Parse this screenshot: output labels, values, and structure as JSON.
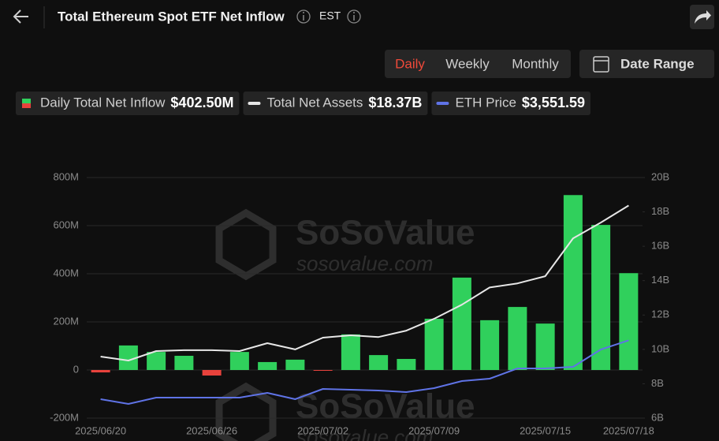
{
  "header": {
    "title": "Total Ethereum Spot ETF Net Inflow",
    "timezone": "EST"
  },
  "tabs": {
    "items": [
      "Daily",
      "Weekly",
      "Monthly"
    ],
    "active": "Daily"
  },
  "date_range": "Date Range",
  "watermark": {
    "name": "SoSoValue",
    "url": "sosovalue.com"
  },
  "chart_data": {
    "type": "bar",
    "categories": [
      "2025/06/20",
      null,
      null,
      null,
      "2025/06/26",
      null,
      null,
      null,
      "2025/07/02",
      null,
      null,
      null,
      "2025/07/09",
      null,
      null,
      null,
      "2025/07/15",
      null,
      null,
      "2025/07/18"
    ],
    "series": [
      {
        "name": "Daily Total Net Inflow",
        "type": "bar",
        "color": "#30d05c",
        "negative_color": "#e8423c",
        "summary": "$402.50M",
        "values": [
          -10,
          102,
          75,
          59,
          -23,
          75,
          33,
          43,
          -1,
          148,
          62,
          46,
          213,
          384,
          207,
          262,
          193,
          727,
          603,
          402.5
        ]
      },
      {
        "name": "Total Net Assets",
        "type": "line",
        "axis": "y2",
        "color": "#e6e6e6",
        "summary": "$18.37B",
        "values": [
          9.58,
          9.35,
          9.9,
          9.95,
          9.95,
          9.9,
          10.36,
          10.0,
          10.68,
          10.82,
          10.72,
          11.09,
          11.78,
          12.6,
          13.6,
          13.84,
          14.26,
          16.46,
          17.38,
          18.37
        ]
      },
      {
        "name": "ETH Price",
        "type": "line",
        "axis": "y3",
        "color": "#5f73e6",
        "summary": "$3,551.59",
        "values": [
          2378,
          2283,
          2409,
          2409,
          2409,
          2409,
          2504,
          2378,
          2582,
          2567,
          2551,
          2519,
          2598,
          2740,
          2787,
          2992,
          2992,
          3023,
          3369,
          3551.59
        ]
      }
    ],
    "ylim": [
      -200,
      800
    ],
    "yticks": [
      {
        "value": -200,
        "label": "-200M"
      },
      {
        "value": 0,
        "label": "0"
      },
      {
        "value": 200,
        "label": "200M"
      },
      {
        "value": 400,
        "label": "400M"
      },
      {
        "value": 600,
        "label": "600M"
      },
      {
        "value": 800,
        "label": "800M"
      }
    ],
    "y2lim": [
      6,
      20
    ],
    "y2ticks": [
      {
        "value": 6,
        "label": "6B"
      },
      {
        "value": 8,
        "label": "8B"
      },
      {
        "value": 10,
        "label": "10B"
      },
      {
        "value": 12,
        "label": "12B"
      },
      {
        "value": 14,
        "label": "14B"
      },
      {
        "value": 16,
        "label": "16B"
      },
      {
        "value": 18,
        "label": "18B"
      },
      {
        "value": 20,
        "label": "20B"
      }
    ],
    "y3lim": [
      2000,
      6800
    ],
    "grid": true
  }
}
